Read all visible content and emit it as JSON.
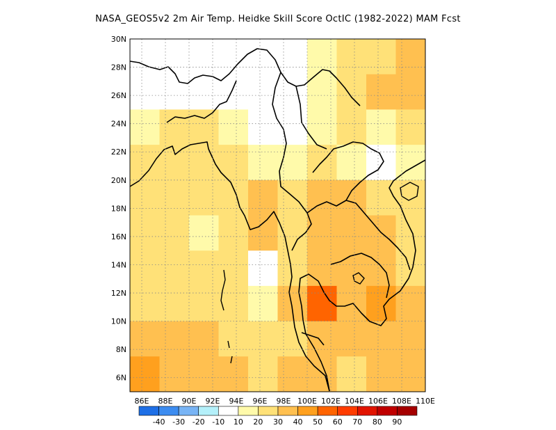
{
  "title": "NASA_GEOS5v2  2m Air Temp. Heidke Skill Score OctIC (1982-2022) MAM Fcst",
  "map": {
    "lon_range": [
      85,
      110
    ],
    "lat_range": [
      5,
      30
    ],
    "lon_ticks": [
      "86E",
      "88E",
      "90E",
      "92E",
      "94E",
      "96E",
      "98E",
      "100E",
      "102E",
      "104E",
      "106E",
      "108E",
      "110E"
    ],
    "lat_ticks": [
      "30N",
      "28N",
      "26N",
      "24N",
      "22N",
      "20N",
      "18N",
      "16N",
      "14N",
      "12N",
      "10N",
      "8N",
      "6N"
    ],
    "gridlines": "dotted"
  },
  "colorbar": {
    "labels": [
      "-40",
      "-30",
      "-20",
      "-10",
      "10",
      "20",
      "30",
      "40",
      "50",
      "60",
      "70",
      "80",
      "90"
    ],
    "colors": [
      "#1e6fe6",
      "#3c8cf0",
      "#78b4f5",
      "#b4f0fa",
      "#ffffff",
      "#fffaaa",
      "#ffe178",
      "#ffc050",
      "#ffa01e",
      "#ff6400",
      "#ff3c00",
      "#e11400",
      "#c00000",
      "#a50000"
    ]
  },
  "chart_data": {
    "type": "heatmap",
    "title": "NASA_GEOS5v2  2m Air Temp. Heidke Skill Score OctIC (1982-2022) MAM Fcst",
    "x_range": [
      85,
      110
    ],
    "y_range": [
      5,
      30
    ],
    "grid_step": 2.5,
    "lons": [
      86.25,
      88.75,
      91.25,
      93.75,
      96.25,
      98.75,
      101.25,
      103.75,
      106.25,
      108.75
    ],
    "lats": [
      28.75,
      26.25,
      23.75,
      21.25,
      18.75,
      16.25,
      13.75,
      11.25,
      8.75,
      6.25
    ],
    "values": [
      [
        0,
        -10,
        0,
        0,
        0,
        0,
        10,
        20,
        20,
        30
      ],
      [
        -10,
        0,
        0,
        0,
        -10,
        0,
        10,
        20,
        30,
        30
      ],
      [
        10,
        20,
        20,
        10,
        0,
        0,
        10,
        20,
        10,
        20
      ],
      [
        20,
        20,
        20,
        20,
        10,
        10,
        20,
        10,
        -10,
        10
      ],
      [
        20,
        20,
        20,
        20,
        30,
        20,
        30,
        30,
        20,
        20
      ],
      [
        20,
        20,
        10,
        20,
        30,
        20,
        30,
        30,
        30,
        20
      ],
      [
        20,
        20,
        20,
        20,
        0,
        20,
        30,
        30,
        30,
        20
      ],
      [
        20,
        20,
        20,
        20,
        10,
        30,
        50,
        30,
        40,
        30
      ],
      [
        30,
        30,
        30,
        20,
        20,
        20,
        30,
        30,
        30,
        30
      ],
      [
        40,
        30,
        30,
        30,
        20,
        30,
        30,
        20,
        30,
        30
      ]
    ],
    "colorbar_levels": [
      -40,
      -30,
      -20,
      -10,
      10,
      20,
      30,
      40,
      50,
      60,
      70,
      80,
      90
    ]
  }
}
